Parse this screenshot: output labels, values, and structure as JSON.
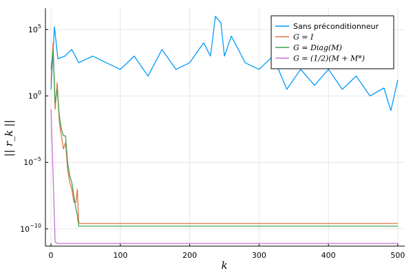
{
  "chart_data": {
    "type": "line",
    "title": "",
    "xlabel": "k",
    "ylabel": "|| r_k ||",
    "xlim": [
      -8,
      510
    ],
    "yscale": "log",
    "ylim_log10": [
      -11.3,
      6.6
    ],
    "grid": true,
    "legend_position": "top-right",
    "x_ticks": [
      0,
      100,
      200,
      300,
      400,
      500
    ],
    "x_tick_labels": [
      "0",
      "100",
      "200",
      "300",
      "400",
      "500"
    ],
    "y_ticks_log10": [
      5,
      0,
      -5,
      -10
    ],
    "y_tick_labels": [
      "10^5",
      "10^0",
      "10^−5",
      "10^−10"
    ],
    "series": [
      {
        "name": "Sans préconditionneur",
        "color": "#009AF9",
        "x": [
          0,
          5,
          10,
          20,
          30,
          40,
          60,
          80,
          100,
          120,
          140,
          160,
          180,
          200,
          220,
          230,
          237,
          245,
          250,
          260,
          280,
          300,
          320,
          340,
          360,
          380,
          400,
          420,
          440,
          460,
          480,
          490,
          500
        ],
        "y_log10": [
          0.5,
          5.2,
          2.8,
          3.0,
          3.5,
          2.5,
          3.0,
          2.5,
          2.0,
          3.0,
          1.5,
          3.5,
          2.0,
          2.5,
          4.0,
          3.0,
          6.0,
          5.5,
          3.0,
          4.5,
          2.5,
          2.0,
          3.0,
          0.5,
          2.0,
          0.8,
          2.0,
          0.5,
          1.5,
          0.0,
          0.6,
          -1.1,
          1.2
        ]
      },
      {
        "name": "G = I",
        "color": "#E26F46",
        "x": [
          0,
          3,
          6,
          9,
          12,
          15,
          18,
          21,
          24,
          27,
          30,
          33,
          36,
          38,
          39,
          40,
          42,
          500
        ],
        "y_log10": [
          1.0,
          4.0,
          -1.0,
          1.0,
          -2.0,
          -3.0,
          -4.0,
          -3.5,
          -5.5,
          -6.5,
          -7.0,
          -8.0,
          -8.0,
          -7.0,
          -8.5,
          -9.5,
          -9.6,
          -9.6
        ]
      },
      {
        "name": "G = Diag(M)",
        "color": "#3DA44D",
        "x": [
          0,
          3,
          6,
          9,
          12,
          15,
          18,
          21,
          24,
          27,
          30,
          33,
          36,
          38,
          40,
          500
        ],
        "y_log10": [
          2.0,
          3.5,
          -0.5,
          0.5,
          -1.5,
          -2.5,
          -3.0,
          -3.0,
          -5.0,
          -6.0,
          -6.5,
          -7.5,
          -8.5,
          -9.0,
          -9.8,
          -9.8
        ]
      },
      {
        "name": "G = (1/2)(M + M*)",
        "color": "#C271D2",
        "x": [
          0,
          3,
          6,
          10,
          500
        ],
        "y_log10": [
          -1.0,
          -6.0,
          -11.0,
          -11.1,
          -11.1
        ]
      }
    ]
  }
}
